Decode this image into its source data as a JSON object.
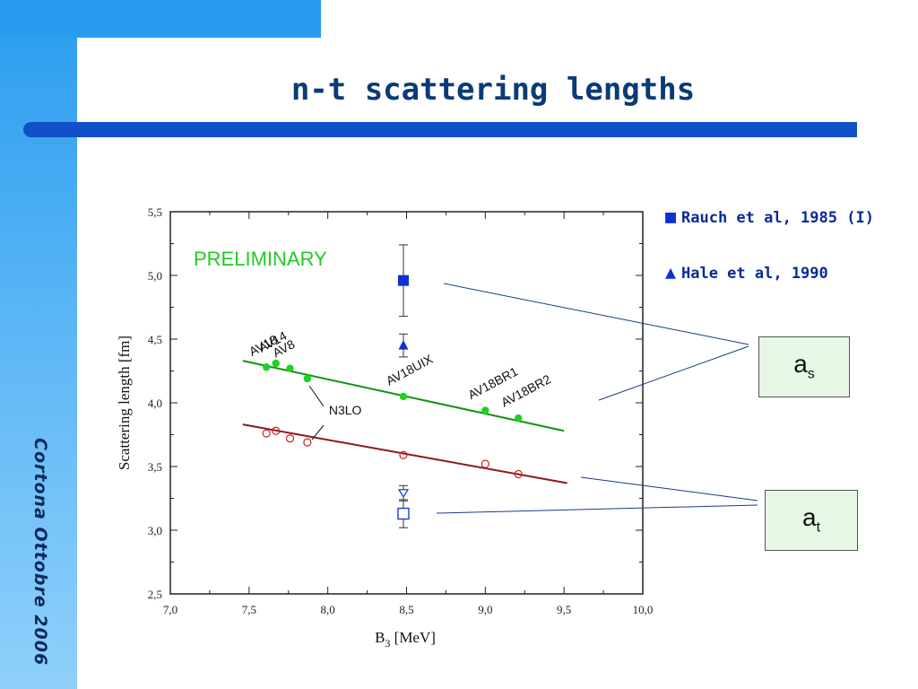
{
  "slide": {
    "title": "n-t scattering lengths",
    "vertical_note": "Cortona Ottobre 2006"
  },
  "legend": [
    {
      "symbol": "square-filled",
      "label": "Rauch et al, 1985 (I)"
    },
    {
      "symbol": "triangle-filled",
      "label": "Hale et al, 1990"
    }
  ],
  "label_boxes": {
    "as": {
      "main": "a",
      "sub": "s"
    },
    "at": {
      "main": "a",
      "sub": "t"
    }
  },
  "colors": {
    "green": "#129412",
    "brown": "#8b1a1a",
    "blue": "#1030d0",
    "preliminary": "#22cc22"
  },
  "chart_data": {
    "type": "scatter",
    "title": "",
    "xlabel_main": "B",
    "xlabel_sub": "3",
    "xlabel_rest": " [MeV]",
    "ylabel": "Scattering length [fm]",
    "xlim": [
      7.0,
      10.0
    ],
    "ylim": [
      2.5,
      5.5
    ],
    "x_ticks": [
      7.0,
      7.5,
      8.0,
      8.5,
      9.0,
      9.5,
      10.0
    ],
    "x_tick_labels": [
      "7,0",
      "7,5",
      "8,0",
      "8,5",
      "9,0",
      "9,5",
      "10,0"
    ],
    "y_ticks": [
      2.5,
      3.0,
      3.5,
      4.0,
      4.5,
      5.0,
      5.5
    ],
    "y_tick_labels": [
      "2,5",
      "3,0",
      "3,5",
      "4,0",
      "4,5",
      "5,0",
      "5,5"
    ],
    "annotation": "PRELIMINARY",
    "series": [
      {
        "name": "a_s",
        "marker": "circle-filled",
        "color": "#1ed21e",
        "points": [
          {
            "x": 7.61,
            "y": 4.28,
            "label": "AV18"
          },
          {
            "x": 7.67,
            "y": 4.31,
            "label": "AV14"
          },
          {
            "x": 7.76,
            "y": 4.27,
            "label": "AV8"
          },
          {
            "x": 7.87,
            "y": 4.19,
            "label": "N3LO"
          },
          {
            "x": 8.48,
            "y": 4.05,
            "label": "AV18UIX"
          },
          {
            "x": 9.0,
            "y": 3.94,
            "label": "AV18BR1"
          },
          {
            "x": 9.21,
            "y": 3.88,
            "label": "AV18BR2"
          }
        ],
        "fit": {
          "x": [
            7.46,
            9.5
          ],
          "y": [
            4.33,
            3.78
          ]
        }
      },
      {
        "name": "a_t",
        "marker": "circle-open",
        "color": "#d02020",
        "points": [
          {
            "x": 7.61,
            "y": 3.76
          },
          {
            "x": 7.67,
            "y": 3.78
          },
          {
            "x": 7.76,
            "y": 3.72
          },
          {
            "x": 7.87,
            "y": 3.69
          },
          {
            "x": 8.48,
            "y": 3.59
          },
          {
            "x": 9.0,
            "y": 3.52
          },
          {
            "x": 9.21,
            "y": 3.44
          }
        ],
        "fit": {
          "x": [
            7.46,
            9.52
          ],
          "y": [
            3.83,
            3.37
          ]
        }
      },
      {
        "name": "Rauch et al, 1985 (I) a_s",
        "marker": "square-filled",
        "color": "#1030d0",
        "points": [
          {
            "x": 8.48,
            "y": 4.96,
            "err": 0.28
          }
        ]
      },
      {
        "name": "Hale et al, 1990 a_s",
        "marker": "triangle-filled",
        "color": "#1030d0",
        "points": [
          {
            "x": 8.48,
            "y": 4.45,
            "err": 0.09
          }
        ]
      },
      {
        "name": "Rauch et al, 1985 (I) a_t",
        "marker": "square-open",
        "color": "#1030d0",
        "points": [
          {
            "x": 8.48,
            "y": 3.13,
            "err": 0.11
          }
        ]
      },
      {
        "name": "Hale et al, 1990 a_t",
        "marker": "triangle-open-down",
        "color": "#1030d0",
        "points": [
          {
            "x": 8.48,
            "y": 3.29,
            "err": 0.06
          }
        ]
      }
    ]
  }
}
